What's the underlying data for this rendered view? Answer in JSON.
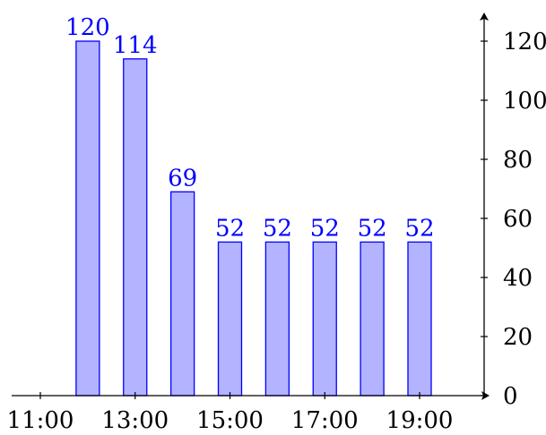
{
  "chart_data": {
    "type": "bar",
    "title": "",
    "xlabel": "",
    "ylabel": "",
    "x": [
      "12:00",
      "13:00",
      "14:00",
      "15:00",
      "16:00",
      "17:00",
      "18:00",
      "19:00"
    ],
    "values": [
      120,
      114,
      69,
      52,
      52,
      52,
      52,
      52
    ],
    "data_labels": [
      "120",
      "114",
      "69",
      "52",
      "52",
      "52",
      "52",
      "52"
    ],
    "x_ticks": [
      "11:00",
      "13:00",
      "15:00",
      "17:00",
      "19:00"
    ],
    "y_ticks": [
      "0",
      "20",
      "40",
      "60",
      "80",
      "100",
      "120"
    ],
    "xlim": [
      "10:40",
      "20:30"
    ],
    "ylim": [
      0,
      128
    ],
    "y_axis_side": "right",
    "grid": false,
    "legend": "none",
    "colors": {
      "bar_fill": "#b3b3ff",
      "bar_stroke": "#0000ff",
      "label": "#0000ff",
      "axis": "#000000"
    }
  }
}
